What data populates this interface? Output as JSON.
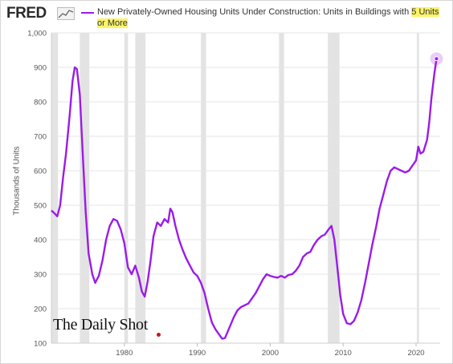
{
  "header": {
    "brand": "FRED",
    "brand_icon": "chart-line-icon",
    "series_color": "#9b1bea",
    "title_prefix": "New Privately-Owned Housing Units Under Construction: Units in Buildings with ",
    "title_highlight": "5 Units or More"
  },
  "watermark": "The Daily Shot",
  "chart_data": {
    "type": "line",
    "title": "New Privately-Owned Housing Units Under Construction: Units in Buildings with 5 Units or More",
    "xlabel": "",
    "ylabel": "Thousands of Units",
    "xlim": [
      1970,
      2023.3
    ],
    "ylim": [
      100,
      1000
    ],
    "xticks": [
      1980,
      1990,
      2000,
      2010,
      2020
    ],
    "yticks": [
      100,
      200,
      300,
      400,
      500,
      600,
      700,
      800,
      900,
      1000
    ],
    "ytick_labels": [
      "100",
      "200",
      "300",
      "400",
      "500",
      "600",
      "700",
      "800",
      "900",
      "1,000"
    ],
    "grid": "horizontal",
    "recessions": [
      [
        1970.0,
        1970.9
      ],
      [
        1973.9,
        1975.2
      ],
      [
        1980.0,
        1980.5
      ],
      [
        1981.5,
        1982.9
      ],
      [
        1990.5,
        1991.2
      ],
      [
        2001.2,
        2001.9
      ],
      [
        2007.9,
        2009.5
      ],
      [
        2020.1,
        2020.4
      ]
    ],
    "series": [
      {
        "color": "#9b1bea",
        "points": [
          [
            1970.0,
            485
          ],
          [
            1970.5,
            475
          ],
          [
            1970.8,
            468
          ],
          [
            1971.2,
            500
          ],
          [
            1971.6,
            580
          ],
          [
            1972.0,
            650
          ],
          [
            1972.5,
            760
          ],
          [
            1972.9,
            860
          ],
          [
            1973.2,
            900
          ],
          [
            1973.5,
            895
          ],
          [
            1973.9,
            820
          ],
          [
            1974.3,
            650
          ],
          [
            1974.7,
            480
          ],
          [
            1975.1,
            360
          ],
          [
            1975.6,
            300
          ],
          [
            1976.0,
            275
          ],
          [
            1976.5,
            295
          ],
          [
            1977.0,
            340
          ],
          [
            1977.5,
            400
          ],
          [
            1978.0,
            440
          ],
          [
            1978.5,
            460
          ],
          [
            1979.0,
            455
          ],
          [
            1979.5,
            430
          ],
          [
            1980.0,
            390
          ],
          [
            1980.5,
            320
          ],
          [
            1981.0,
            300
          ],
          [
            1981.5,
            325
          ],
          [
            1982.0,
            290
          ],
          [
            1982.4,
            250
          ],
          [
            1982.8,
            235
          ],
          [
            1983.2,
            280
          ],
          [
            1983.6,
            340
          ],
          [
            1984.0,
            410
          ],
          [
            1984.5,
            450
          ],
          [
            1985.0,
            440
          ],
          [
            1985.5,
            460
          ],
          [
            1986.0,
            450
          ],
          [
            1986.3,
            490
          ],
          [
            1986.6,
            480
          ],
          [
            1987.0,
            440
          ],
          [
            1987.5,
            400
          ],
          [
            1988.0,
            370
          ],
          [
            1988.5,
            345
          ],
          [
            1989.0,
            325
          ],
          [
            1989.5,
            305
          ],
          [
            1990.0,
            295
          ],
          [
            1990.5,
            275
          ],
          [
            1991.0,
            245
          ],
          [
            1991.5,
            200
          ],
          [
            1992.0,
            160
          ],
          [
            1992.5,
            140
          ],
          [
            1993.0,
            125
          ],
          [
            1993.4,
            113
          ],
          [
            1993.8,
            115
          ],
          [
            1994.3,
            140
          ],
          [
            1995.0,
            175
          ],
          [
            1995.5,
            195
          ],
          [
            1996.0,
            205
          ],
          [
            1997.0,
            215
          ],
          [
            1998.0,
            245
          ],
          [
            1998.5,
            265
          ],
          [
            1999.0,
            285
          ],
          [
            1999.5,
            300
          ],
          [
            2000.0,
            295
          ],
          [
            2000.5,
            292
          ],
          [
            2001.0,
            290
          ],
          [
            2001.5,
            295
          ],
          [
            2002.0,
            290
          ],
          [
            2002.5,
            298
          ],
          [
            2003.0,
            300
          ],
          [
            2003.5,
            310
          ],
          [
            2004.0,
            325
          ],
          [
            2004.5,
            350
          ],
          [
            2005.0,
            360
          ],
          [
            2005.5,
            365
          ],
          [
            2006.0,
            385
          ],
          [
            2006.5,
            400
          ],
          [
            2007.0,
            410
          ],
          [
            2007.5,
            415
          ],
          [
            2008.0,
            430
          ],
          [
            2008.4,
            440
          ],
          [
            2008.8,
            400
          ],
          [
            2009.2,
            320
          ],
          [
            2009.6,
            240
          ],
          [
            2010.0,
            185
          ],
          [
            2010.5,
            158
          ],
          [
            2011.0,
            155
          ],
          [
            2011.5,
            165
          ],
          [
            2012.0,
            190
          ],
          [
            2012.5,
            225
          ],
          [
            2013.0,
            275
          ],
          [
            2013.5,
            330
          ],
          [
            2014.0,
            385
          ],
          [
            2014.5,
            435
          ],
          [
            2015.0,
            490
          ],
          [
            2015.5,
            530
          ],
          [
            2016.0,
            570
          ],
          [
            2016.5,
            600
          ],
          [
            2017.0,
            610
          ],
          [
            2017.5,
            605
          ],
          [
            2018.0,
            600
          ],
          [
            2018.5,
            595
          ],
          [
            2019.0,
            600
          ],
          [
            2019.5,
            615
          ],
          [
            2020.0,
            630
          ],
          [
            2020.3,
            670
          ],
          [
            2020.6,
            650
          ],
          [
            2021.0,
            655
          ],
          [
            2021.5,
            690
          ],
          [
            2021.8,
            740
          ],
          [
            2022.1,
            810
          ],
          [
            2022.5,
            880
          ],
          [
            2022.8,
            925
          ]
        ]
      }
    ],
    "last_point": [
      2022.8,
      925
    ]
  }
}
